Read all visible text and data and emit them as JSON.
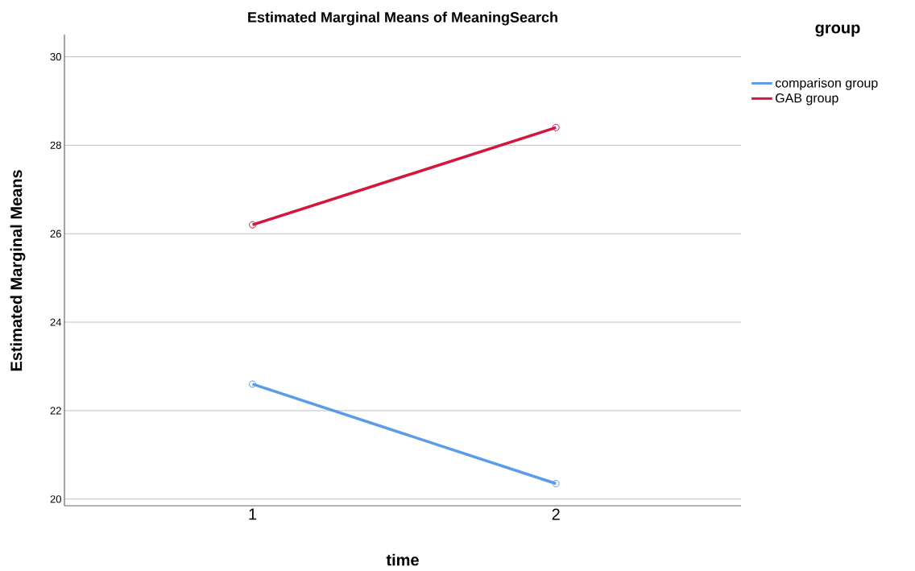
{
  "chart_data": {
    "type": "line",
    "title": "Estimated Marginal Means of MeaningSearch",
    "xlabel": "time",
    "ylabel": "Estimated Marginal Means",
    "legend_title": "group",
    "categories": [
      "1",
      "2"
    ],
    "series": [
      {
        "name": "comparison group",
        "color": "#5b9be8",
        "values": [
          22.6,
          20.35
        ]
      },
      {
        "name": "GAB group",
        "color": "#d6143c",
        "values": [
          26.2,
          28.4
        ]
      }
    ],
    "ylim": [
      19.85,
      30.5
    ],
    "yticks": [
      20,
      22,
      24,
      26,
      28,
      30
    ],
    "grid": "y",
    "legend": "top right",
    "marker": "circle",
    "line_style": "solid"
  }
}
